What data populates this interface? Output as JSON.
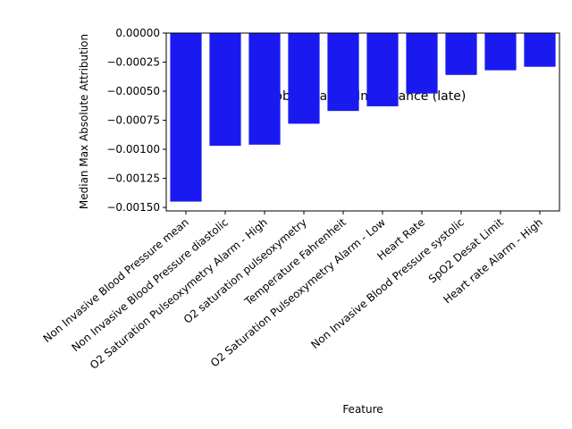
{
  "chart_data": {
    "type": "bar",
    "title": "Global Feature Importance (late)",
    "xlabel": "Feature",
    "ylabel": "Median Max Absolute Attribution",
    "categories": [
      "Non Invasive Blood Pressure mean",
      "Non Invasive Blood Pressure diastolic",
      "O2 Saturation Pulseoxymetry Alarm - High",
      "O2 saturation pulseoxymetry",
      "Temperature Fahrenheit",
      "O2 Saturation Pulseoxymetry Alarm - Low",
      "Heart Rate",
      "Non Invasive Blood Pressure systolic",
      "SpO2 Desat Limit",
      "Heart rate Alarm - High"
    ],
    "values": [
      -0.00145,
      -0.00097,
      -0.00096,
      -0.00078,
      -0.00067,
      -0.00063,
      -0.00052,
      -0.00036,
      -0.00032,
      -0.00029
    ],
    "ylim": [
      -0.00153,
      0.0
    ],
    "yticks": [
      0.0,
      -0.00025,
      -0.0005,
      -0.00075,
      -0.001,
      -0.00125,
      -0.0015
    ],
    "ytick_labels": [
      "0.00000",
      "−0.00025",
      "−0.00050",
      "−0.00075",
      "−0.00100",
      "−0.00125",
      "−0.00150"
    ],
    "bar_color": "#1a1af0",
    "grid": false
  }
}
